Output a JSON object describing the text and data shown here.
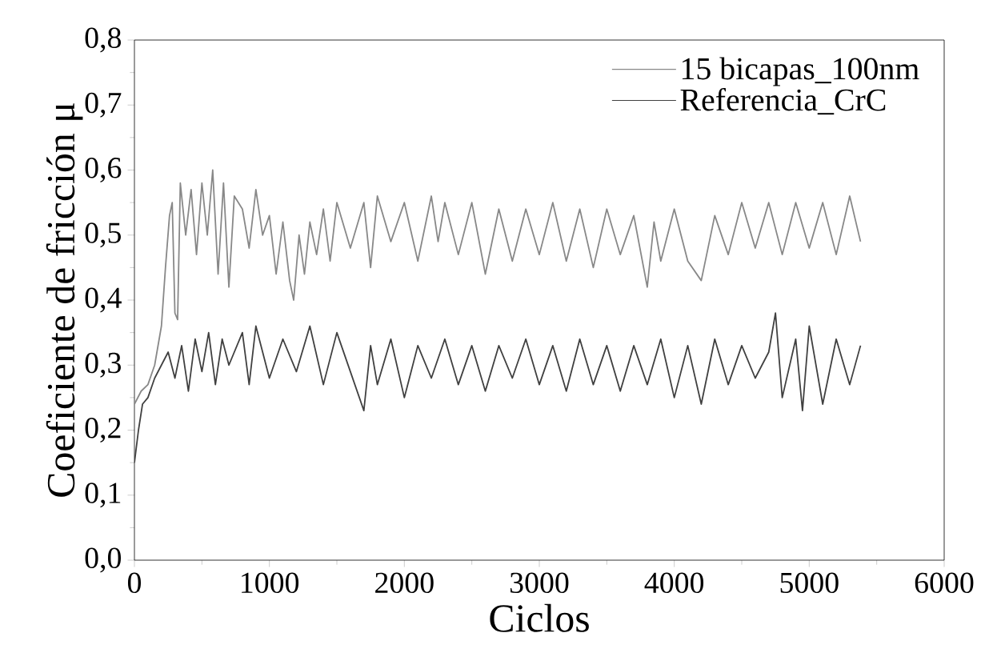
{
  "chart_data": {
    "type": "line",
    "xlabel": "Ciclos",
    "ylabel": "Coeficiente de fricción μ",
    "xlim": [
      0,
      6000
    ],
    "ylim": [
      0,
      0.8
    ],
    "xticks": [
      0,
      1000,
      2000,
      3000,
      4000,
      5000,
      6000
    ],
    "yticks": [
      {
        "value": 0,
        "label": "0,0"
      },
      {
        "value": 0.1,
        "label": "0,1"
      },
      {
        "value": 0.2,
        "label": "0,2"
      },
      {
        "value": 0.3,
        "label": "0,3"
      },
      {
        "value": 0.4,
        "label": "0,4"
      },
      {
        "value": 0.5,
        "label": "0,5"
      },
      {
        "value": 0.6,
        "label": "0,6"
      },
      {
        "value": 0.7,
        "label": "0,7"
      },
      {
        "value": 0.8,
        "label": "0,8"
      }
    ],
    "legend": "top right",
    "marker": "none",
    "line_style": "solid",
    "grid": false,
    "series": [
      {
        "name": "15 bicapas_100nm",
        "color": "#888888",
        "x": [
          0,
          50,
          100,
          150,
          200,
          230,
          260,
          280,
          300,
          320,
          340,
          380,
          420,
          460,
          500,
          540,
          580,
          620,
          660,
          700,
          740,
          800,
          850,
          900,
          950,
          1000,
          1050,
          1100,
          1150,
          1180,
          1220,
          1260,
          1300,
          1350,
          1400,
          1450,
          1500,
          1600,
          1700,
          1750,
          1800,
          1900,
          2000,
          2100,
          2200,
          2250,
          2300,
          2400,
          2500,
          2600,
          2700,
          2800,
          2900,
          3000,
          3100,
          3200,
          3300,
          3400,
          3500,
          3600,
          3700,
          3800,
          3850,
          3900,
          4000,
          4100,
          4200,
          4300,
          4400,
          4500,
          4600,
          4700,
          4800,
          4900,
          5000,
          5100,
          5200,
          5300,
          5380
        ],
        "values": [
          0.24,
          0.26,
          0.27,
          0.3,
          0.36,
          0.45,
          0.53,
          0.55,
          0.38,
          0.37,
          0.58,
          0.5,
          0.57,
          0.47,
          0.58,
          0.5,
          0.6,
          0.44,
          0.58,
          0.42,
          0.56,
          0.54,
          0.48,
          0.57,
          0.5,
          0.53,
          0.44,
          0.52,
          0.43,
          0.4,
          0.5,
          0.44,
          0.52,
          0.47,
          0.54,
          0.46,
          0.55,
          0.48,
          0.55,
          0.45,
          0.56,
          0.49,
          0.55,
          0.46,
          0.56,
          0.49,
          0.55,
          0.47,
          0.55,
          0.44,
          0.54,
          0.46,
          0.54,
          0.47,
          0.55,
          0.46,
          0.54,
          0.45,
          0.54,
          0.47,
          0.53,
          0.42,
          0.52,
          0.46,
          0.54,
          0.46,
          0.43,
          0.53,
          0.47,
          0.55,
          0.48,
          0.55,
          0.47,
          0.55,
          0.48,
          0.55,
          0.47,
          0.56,
          0.49
        ]
      },
      {
        "name": "Referencia_CrC",
        "color": "#404040",
        "x": [
          0,
          30,
          60,
          100,
          150,
          200,
          250,
          300,
          350,
          400,
          450,
          500,
          550,
          600,
          650,
          700,
          800,
          850,
          900,
          1000,
          1100,
          1200,
          1300,
          1400,
          1500,
          1600,
          1700,
          1750,
          1800,
          1900,
          2000,
          2100,
          2200,
          2300,
          2400,
          2500,
          2600,
          2700,
          2800,
          2900,
          3000,
          3100,
          3200,
          3300,
          3400,
          3500,
          3600,
          3700,
          3800,
          3900,
          4000,
          4100,
          4200,
          4300,
          4400,
          4500,
          4600,
          4700,
          4750,
          4800,
          4900,
          4950,
          5000,
          5100,
          5200,
          5300,
          5380
        ],
        "values": [
          0.15,
          0.2,
          0.24,
          0.25,
          0.28,
          0.3,
          0.32,
          0.28,
          0.33,
          0.26,
          0.34,
          0.29,
          0.35,
          0.27,
          0.34,
          0.3,
          0.35,
          0.27,
          0.36,
          0.28,
          0.34,
          0.29,
          0.36,
          0.27,
          0.35,
          0.29,
          0.23,
          0.33,
          0.27,
          0.34,
          0.25,
          0.33,
          0.28,
          0.34,
          0.27,
          0.33,
          0.26,
          0.33,
          0.28,
          0.34,
          0.27,
          0.33,
          0.26,
          0.34,
          0.27,
          0.33,
          0.26,
          0.33,
          0.27,
          0.34,
          0.25,
          0.33,
          0.24,
          0.34,
          0.27,
          0.33,
          0.28,
          0.32,
          0.38,
          0.25,
          0.34,
          0.23,
          0.36,
          0.24,
          0.34,
          0.27,
          0.33
        ]
      }
    ]
  }
}
